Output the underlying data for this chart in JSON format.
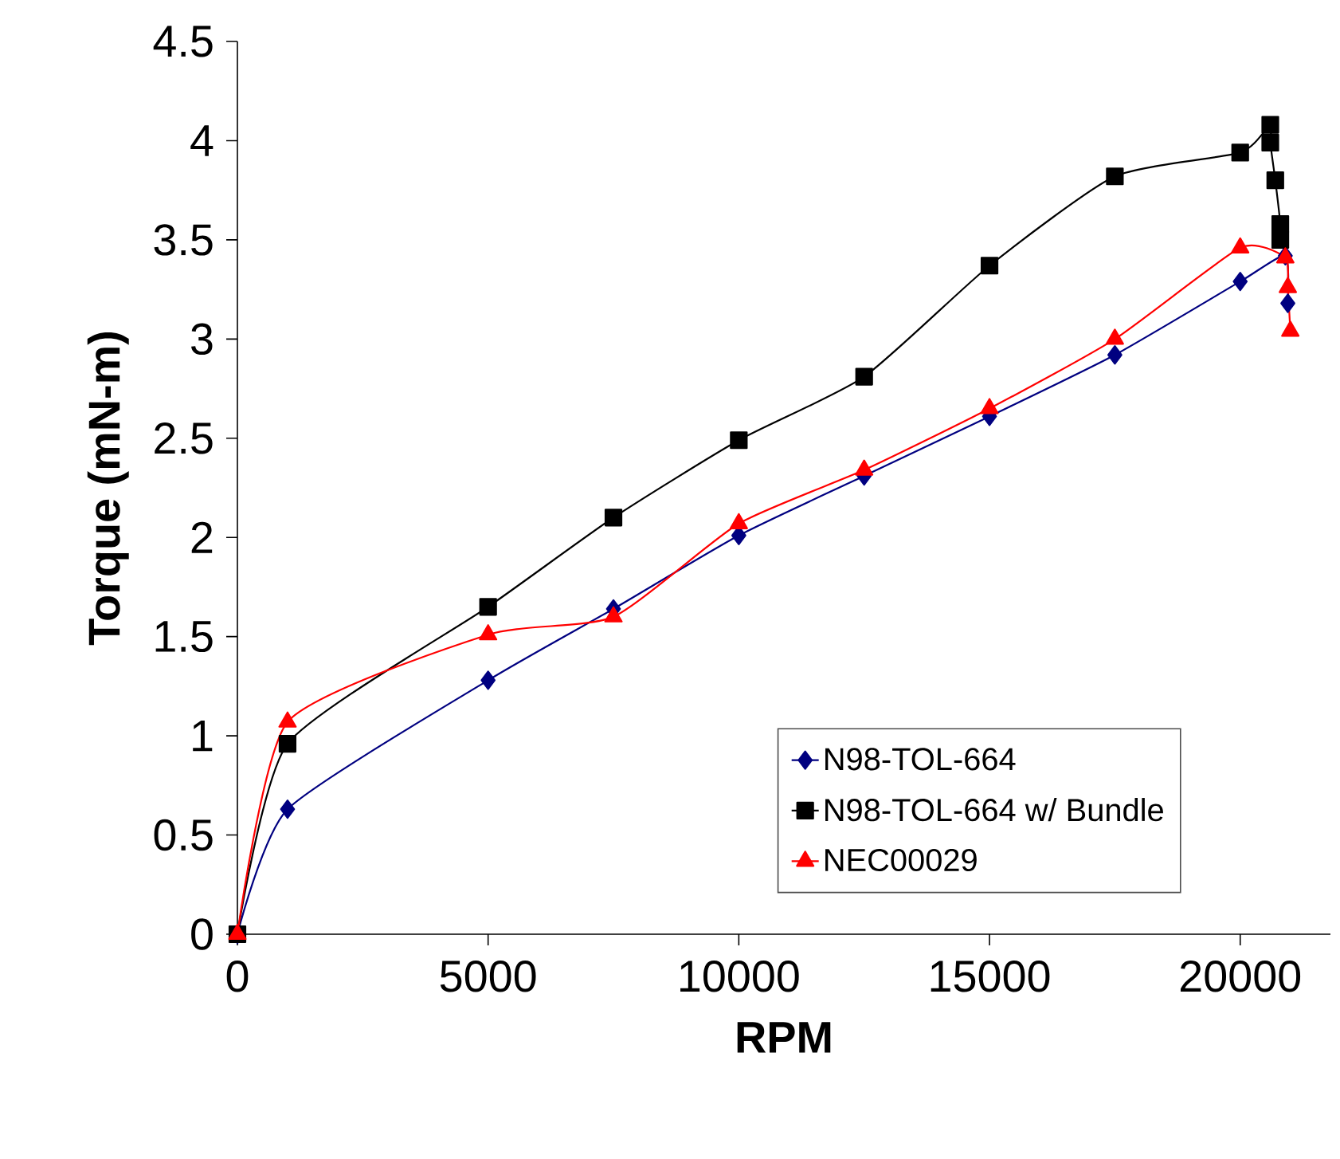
{
  "chart_data": {
    "type": "line",
    "xlabel": "RPM",
    "ylabel": "Torque (mN-m)",
    "xlim": [
      0,
      21800
    ],
    "xticks": [
      0,
      5000,
      10000,
      15000,
      20000
    ],
    "ylim": [
      0,
      4.5
    ],
    "yticks": [
      0,
      0.5,
      1,
      1.5,
      2,
      2.5,
      3,
      3.5,
      4,
      4.5
    ],
    "grid": false,
    "legend": "bottom right",
    "series": [
      {
        "name": "N98-TOL-664",
        "color": "#000080",
        "marker": "diamond",
        "x": [
          0,
          1000,
          5000,
          7500,
          10000,
          12500,
          15000,
          17500,
          20000,
          20900,
          20950
        ],
        "values": [
          0,
          0.63,
          1.28,
          1.64,
          2.01,
          2.31,
          2.61,
          2.92,
          3.29,
          3.42,
          3.18
        ]
      },
      {
        "name": "N98-TOL-664 w/ Bundle",
        "color": "#000000",
        "marker": "square",
        "x": [
          0,
          1000,
          5000,
          7500,
          10000,
          12500,
          15000,
          17500,
          20000,
          20600,
          20600,
          20700,
          20800,
          20800
        ],
        "values": [
          0,
          0.96,
          1.65,
          2.1,
          2.49,
          2.81,
          3.37,
          3.82,
          3.94,
          4.08,
          3.99,
          3.8,
          3.58,
          3.5
        ]
      },
      {
        "name": "NEC00029",
        "color": "#ff0000",
        "marker": "triangle",
        "x": [
          0,
          1000,
          5000,
          7500,
          10000,
          12500,
          15000,
          17500,
          20000,
          20900,
          20950,
          21000
        ],
        "values": [
          0,
          1.07,
          1.51,
          1.6,
          2.07,
          2.34,
          2.65,
          3.0,
          3.46,
          3.41,
          3.26,
          3.04
        ]
      }
    ]
  }
}
